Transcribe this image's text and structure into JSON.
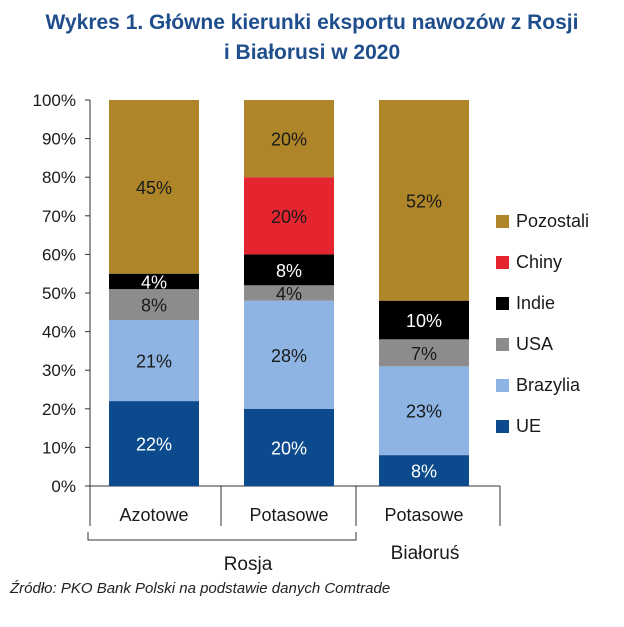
{
  "title": {
    "line1": "Wykres 1. Główne kierunki eksportu nawozów z Rosji",
    "line2": "i Białorusi w 2020"
  },
  "source": "Źródło: PKO Bank Polski na podstawie danych Comtrade",
  "colors": {
    "title": "#1F4E8C",
    "UE": "#0B4A8D",
    "Brazylia": "#8DB4E2",
    "USA": "#8C8C8C",
    "Indie": "#000000",
    "Chiny": "#E42530",
    "Pozostali": "#AF8529"
  },
  "chart_data": {
    "type": "bar",
    "stacked": true,
    "categories": [
      "Azotowe",
      "Potasowe",
      "Potasowe"
    ],
    "groups": [
      {
        "label": "Rosja",
        "categories": [
          0,
          1
        ]
      },
      {
        "label": "Białoruś",
        "categories": [
          2
        ]
      }
    ],
    "ylim": [
      0,
      100
    ],
    "yticks": [
      0,
      10,
      20,
      30,
      40,
      50,
      60,
      70,
      80,
      90,
      100
    ],
    "ytick_format": "%",
    "legend_position": "right",
    "series": [
      {
        "name": "UE",
        "color": "#0B4A8D",
        "values": [
          22,
          20,
          8
        ],
        "labels": [
          "22%",
          "20%",
          "8%"
        ],
        "label_color": "#ffffff"
      },
      {
        "name": "Brazylia",
        "color": "#8DB4E2",
        "values": [
          21,
          28,
          23
        ],
        "labels": [
          "21%",
          "28%",
          "23%"
        ],
        "label_color": "#1a1a1a"
      },
      {
        "name": "USA",
        "color": "#8C8C8C",
        "values": [
          8,
          4,
          7
        ],
        "labels": [
          "8%",
          "4%",
          "7%"
        ],
        "label_color": "#1a1a1a"
      },
      {
        "name": "Indie",
        "color": "#000000",
        "values": [
          4,
          8,
          10
        ],
        "labels": [
          "4%",
          "8%",
          "10%"
        ],
        "label_color": "#ffffff"
      },
      {
        "name": "Chiny",
        "color": "#E42530",
        "values": [
          0,
          20,
          0
        ],
        "labels": [
          "",
          "20%",
          ""
        ],
        "label_color": "#1a1a1a"
      },
      {
        "name": "Pozostali",
        "color": "#AF8529",
        "values": [
          45,
          20,
          52
        ],
        "labels": [
          "45%",
          "20%",
          "52%"
        ],
        "label_color": "#1a1a1a"
      }
    ],
    "legend": [
      "Pozostali",
      "Chiny",
      "Indie",
      "USA",
      "Brazylia",
      "UE"
    ]
  }
}
